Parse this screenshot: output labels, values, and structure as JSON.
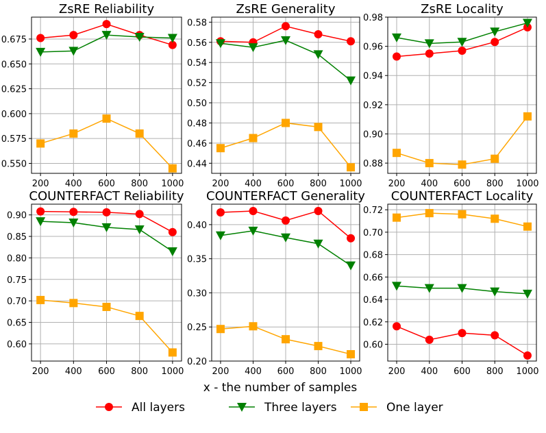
{
  "chart_data": [
    {
      "type": "line",
      "title": "ZsRE Reliability",
      "x": [
        200,
        400,
        600,
        800,
        1000
      ],
      "xticks": [
        "200",
        "400",
        "600",
        "800",
        "1000"
      ],
      "ylim": [
        0.54,
        0.697
      ],
      "yticks": [
        "0.550",
        "0.575",
        "0.600",
        "0.625",
        "0.650",
        "0.675"
      ],
      "ytick_values": [
        0.55,
        0.575,
        0.6,
        0.625,
        0.65,
        0.675
      ],
      "series": [
        {
          "name": "All layers",
          "values": [
            0.676,
            0.679,
            0.69,
            0.679,
            0.669
          ]
        },
        {
          "name": "Three layers",
          "values": [
            0.662,
            0.663,
            0.679,
            0.677,
            0.676
          ]
        },
        {
          "name": "One layer",
          "values": [
            0.57,
            0.58,
            0.595,
            0.58,
            0.545
          ]
        }
      ]
    },
    {
      "type": "line",
      "title": "ZsRE Generality",
      "x": [
        200,
        400,
        600,
        800,
        1000
      ],
      "xticks": [
        "200",
        "400",
        "600",
        "800",
        "1000"
      ],
      "ylim": [
        0.43,
        0.585
      ],
      "yticks": [
        "0.44",
        "0.46",
        "0.48",
        "0.50",
        "0.52",
        "0.54",
        "0.56",
        "0.58"
      ],
      "ytick_values": [
        0.44,
        0.46,
        0.48,
        0.5,
        0.52,
        0.54,
        0.56,
        0.58
      ],
      "series": [
        {
          "name": "All layers",
          "values": [
            0.561,
            0.56,
            0.576,
            0.568,
            0.561
          ]
        },
        {
          "name": "Three layers",
          "values": [
            0.559,
            0.555,
            0.562,
            0.548,
            0.522
          ]
        },
        {
          "name": "One layer",
          "values": [
            0.455,
            0.465,
            0.48,
            0.476,
            0.436
          ]
        }
      ]
    },
    {
      "type": "line",
      "title": "ZsRE Locality",
      "x": [
        200,
        400,
        600,
        800,
        1000
      ],
      "xticks": [
        "200",
        "400",
        "600",
        "800",
        "1000"
      ],
      "ylim": [
        0.873,
        0.98
      ],
      "yticks": [
        "0.88",
        "0.90",
        "0.92",
        "0.94",
        "0.96",
        "0.98"
      ],
      "ytick_values": [
        0.88,
        0.9,
        0.92,
        0.94,
        0.96,
        0.98
      ],
      "series": [
        {
          "name": "All layers",
          "values": [
            0.953,
            0.955,
            0.957,
            0.963,
            0.973
          ]
        },
        {
          "name": "Three layers",
          "values": [
            0.966,
            0.962,
            0.963,
            0.97,
            0.976
          ]
        },
        {
          "name": "One layer",
          "values": [
            0.887,
            0.88,
            0.879,
            0.883,
            0.912
          ]
        }
      ]
    },
    {
      "type": "line",
      "title": "COUNTERFACT Reliability",
      "x": [
        200,
        400,
        600,
        800,
        1000
      ],
      "xticks": [
        "200",
        "400",
        "600",
        "800",
        "1000"
      ],
      "ylim": [
        0.56,
        0.925
      ],
      "yticks": [
        "0.60",
        "0.65",
        "0.70",
        "0.75",
        "0.80",
        "0.85",
        "0.90"
      ],
      "ytick_values": [
        0.6,
        0.65,
        0.7,
        0.75,
        0.8,
        0.85,
        0.9
      ],
      "series": [
        {
          "name": "All layers",
          "values": [
            0.908,
            0.907,
            0.906,
            0.902,
            0.86
          ]
        },
        {
          "name": "Three layers",
          "values": [
            0.885,
            0.882,
            0.871,
            0.866,
            0.815
          ]
        },
        {
          "name": "One layer",
          "values": [
            0.702,
            0.695,
            0.686,
            0.665,
            0.58
          ]
        }
      ]
    },
    {
      "type": "line",
      "title": "COUNTERFACT Generality",
      "x": [
        200,
        400,
        600,
        800,
        1000
      ],
      "xticks": [
        "200",
        "400",
        "600",
        "800",
        "1000"
      ],
      "ylim": [
        0.2,
        0.43
      ],
      "yticks": [
        "0.20",
        "0.25",
        "0.30",
        "0.35",
        "0.40"
      ],
      "ytick_values": [
        0.2,
        0.25,
        0.3,
        0.35,
        0.4
      ],
      "series": [
        {
          "name": "All layers",
          "values": [
            0.418,
            0.42,
            0.406,
            0.42,
            0.38
          ]
        },
        {
          "name": "Three layers",
          "values": [
            0.384,
            0.391,
            0.381,
            0.372,
            0.34
          ]
        },
        {
          "name": "One layer",
          "values": [
            0.247,
            0.251,
            0.232,
            0.222,
            0.21
          ]
        }
      ]
    },
    {
      "type": "line",
      "title": "COUNTERFACT Locality",
      "x": [
        200,
        400,
        600,
        800,
        1000
      ],
      "xticks": [
        "200",
        "400",
        "600",
        "800",
        "1000"
      ],
      "ylim": [
        0.585,
        0.725
      ],
      "yticks": [
        "0.60",
        "0.62",
        "0.64",
        "0.66",
        "0.68",
        "0.70",
        "0.72"
      ],
      "ytick_values": [
        0.6,
        0.62,
        0.64,
        0.66,
        0.68,
        0.7,
        0.72
      ],
      "series": [
        {
          "name": "All layers",
          "values": [
            0.616,
            0.604,
            0.61,
            0.608,
            0.59
          ]
        },
        {
          "name": "Three layers",
          "values": [
            0.652,
            0.65,
            0.65,
            0.647,
            0.645
          ]
        },
        {
          "name": "One layer",
          "values": [
            0.713,
            0.717,
            0.716,
            0.712,
            0.705
          ]
        }
      ]
    }
  ],
  "xlabel": "x - the number of samples",
  "legend": [
    {
      "label": "All layers",
      "color": "#ff0000",
      "marker": "circle"
    },
    {
      "label": "Three layers",
      "color": "#008000",
      "marker": "triangle-down"
    },
    {
      "label": "One layer",
      "color": "#ffa500",
      "marker": "square"
    }
  ]
}
